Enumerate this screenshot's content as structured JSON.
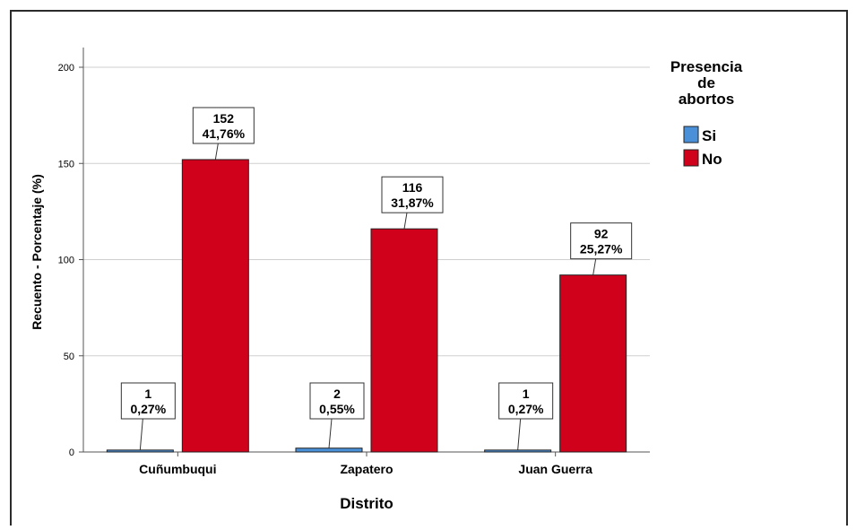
{
  "chart_data": {
    "type": "bar",
    "title": "",
    "xlabel": "Distrito",
    "ylabel": "Recuento - Porcentaje (%)",
    "categories": [
      "Cuñumbuqui",
      "Zapatero",
      "Juan Guerra"
    ],
    "ylim": [
      0,
      200
    ],
    "yticks": [
      "0",
      "50",
      "100",
      "150",
      "200"
    ],
    "ytick_values": [
      0,
      50,
      100,
      150,
      200
    ],
    "grid": true,
    "legend_title": "Presencia\nde\nabortos",
    "legend_position": "right",
    "series": [
      {
        "name": "Si",
        "color": "#4a90d9",
        "values": [
          1,
          2,
          1
        ],
        "labels_count": [
          "1",
          "2",
          "1"
        ],
        "labels_pct": [
          "0,27%",
          "0,55%",
          "0,27%"
        ]
      },
      {
        "name": "No",
        "color": "#d0021b",
        "values": [
          152,
          116,
          92
        ],
        "labels_count": [
          "152",
          "116",
          "92"
        ],
        "labels_pct": [
          "41,76%",
          "31,87%",
          "25,27%"
        ]
      }
    ]
  }
}
